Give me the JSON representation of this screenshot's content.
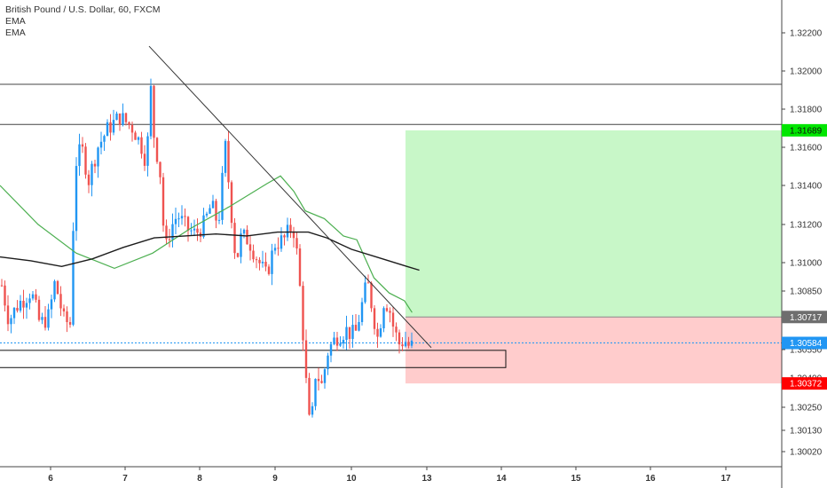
{
  "legend": {
    "title": "British Pound / U.S. Dollar, 60, FXCM",
    "ema1": "EMA",
    "ema2": "EMA"
  },
  "colors": {
    "up": "#2196f3",
    "down": "#ef5350",
    "ema_fast": "#4caf50",
    "ema_slow": "#1c1c1c",
    "profit_zone": "#c8f7c8",
    "loss_zone": "#ffcccc",
    "tp_tag": "#00e600",
    "sl_tag": "#ff0000",
    "entry_tag": "#6e6e6e",
    "price_tag": "#2196f3"
  },
  "chart_data": {
    "type": "candlestick",
    "y_ticks": [
      1.322,
      1.32,
      1.318,
      1.316,
      1.314,
      1.312,
      1.31,
      1.3085,
      1.3055,
      1.304,
      1.3025,
      1.3013,
      1.3002
    ],
    "y_tick_labels": [
      "1.32200",
      "1.32000",
      "1.31800",
      "1.31600",
      "1.31400",
      "1.31200",
      "1.31000",
      "1.30850",
      "1.30550",
      "1.30400",
      "1.30250",
      "1.30130",
      "1.30020"
    ],
    "x_tick_labels": [
      "6",
      "7",
      "8",
      "9",
      "10",
      "13",
      "14",
      "15",
      "16",
      "17"
    ],
    "price_tags": [
      {
        "label": "1.31689",
        "value": 1.31689,
        "role": "take-profit"
      },
      {
        "label": "1.30717",
        "value": 1.30717,
        "role": "entry"
      },
      {
        "label": "1.30584",
        "value": 1.30584,
        "role": "last-price"
      },
      {
        "label": "1.30372",
        "value": 1.30372,
        "role": "stop-loss"
      }
    ],
    "horizontal_levels": [
      1.3193,
      1.3172
    ],
    "support_box": [
      1.30546,
      1.30455
    ],
    "trendline": [
      {
        "x": "7",
        "y": 1.3213
      },
      {
        "x": "13",
        "y": 1.3056
      }
    ],
    "ema_fast": [
      [
        0,
        1.314
      ],
      [
        1,
        1.312
      ],
      [
        2,
        1.3105
      ],
      [
        3,
        1.3097
      ],
      [
        4,
        1.3105
      ],
      [
        5,
        1.3118
      ],
      [
        6,
        1.3129
      ],
      [
        7,
        1.3141
      ],
      [
        7.35,
        1.3145
      ],
      [
        7.7,
        1.3137
      ],
      [
        8,
        1.3127
      ],
      [
        8.5,
        1.3123
      ],
      [
        9,
        1.3114
      ],
      [
        9.35,
        1.3112
      ],
      [
        9.8,
        1.3092
      ],
      [
        10.2,
        1.3084
      ],
      [
        10.6,
        1.308
      ],
      [
        10.8,
        1.3074
      ]
    ],
    "ema_slow": [
      [
        0,
        1.3103
      ],
      [
        0.5,
        1.3101
      ],
      [
        1,
        1.3098
      ],
      [
        1.5,
        1.3102
      ],
      [
        2,
        1.3108
      ],
      [
        2.5,
        1.3113
      ],
      [
        3,
        1.3114
      ],
      [
        3.5,
        1.3115
      ],
      [
        4,
        1.3114
      ],
      [
        4.5,
        1.3116
      ],
      [
        5,
        1.3116
      ],
      [
        5.3,
        1.3113
      ],
      [
        5.7,
        1.3107
      ],
      [
        6.2,
        1.3102
      ],
      [
        6.6,
        1.3098
      ],
      [
        6.8,
        1.3096
      ]
    ]
  }
}
